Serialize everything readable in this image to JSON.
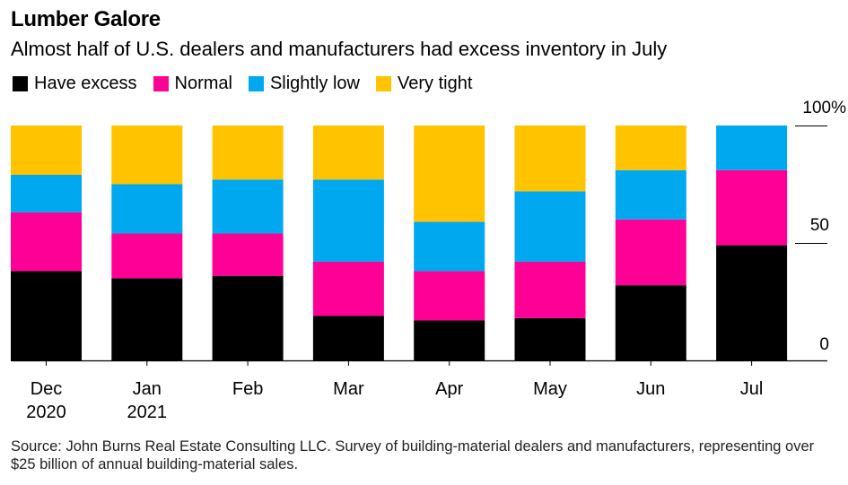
{
  "title": "Lumber Galore",
  "subtitle": "Almost half of U.S. dealers and manufacturers had excess inventory in July",
  "source": "Source: John Burns Real Estate Consulting LLC. Survey of building-material dealers and manufacturers, representing over $25 billion of annual building-material sales.",
  "chart_data": {
    "type": "bar",
    "stacked": true,
    "categories": [
      "Dec|2020",
      "Jan|2021",
      "Feb",
      "Mar",
      "Apr",
      "May",
      "Jun",
      "Jul"
    ],
    "series": [
      {
        "name": "Have excess",
        "color": "#000000",
        "values": [
          38,
          35,
          36,
          19,
          17,
          18,
          32,
          49
        ]
      },
      {
        "name": "Normal",
        "color": "#ff0096",
        "values": [
          25,
          19,
          18,
          23,
          21,
          24,
          28,
          32
        ]
      },
      {
        "name": "Slightly low",
        "color": "#00a8f0",
        "values": [
          16,
          21,
          23,
          35,
          21,
          30,
          21,
          19
        ]
      },
      {
        "name": "Very tight",
        "color": "#ffc300",
        "values": [
          21,
          25,
          23,
          23,
          41,
          28,
          19,
          0
        ]
      }
    ],
    "yticks": [
      "0",
      "50",
      "100%"
    ],
    "ylim": [
      0,
      100
    ],
    "legend_position": "top-left",
    "grid": false
  }
}
